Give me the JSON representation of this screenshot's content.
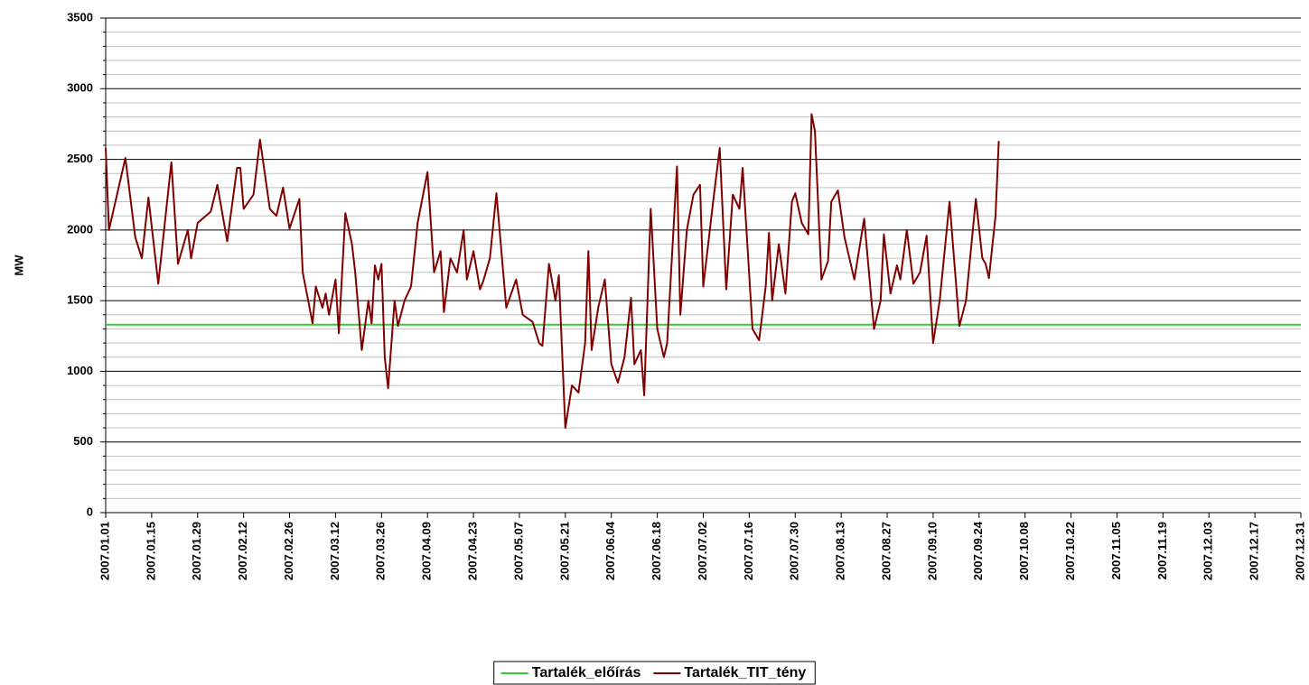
{
  "chart_data": {
    "type": "line",
    "y_label": "MW",
    "xlim": [
      "2007.01.01",
      "2007.12.31"
    ],
    "xticks": [
      "2007.01.01",
      "2007.01.15",
      "2007.01.29",
      "2007.02.12",
      "2007.02.26",
      "2007.03.12",
      "2007.03.26",
      "2007.04.09",
      "2007.04.23",
      "2007.05.07",
      "2007.05.21",
      "2007.06.04",
      "2007.06.18",
      "2007.07.02",
      "2007.07.16",
      "2007.07.30",
      "2007.08.13",
      "2007.08.27",
      "2007.09.10",
      "2007.09.24",
      "2007.10.08",
      "2007.10.22",
      "2007.11.05",
      "2007.11.19",
      "2007.12.03",
      "2007.12.17",
      "2007.12.31"
    ],
    "ylim": [
      0,
      3500
    ],
    "yticks": [
      0,
      500,
      1000,
      1500,
      2000,
      2500,
      3000,
      3500
    ],
    "y_minor_ticks": [
      100,
      200,
      300,
      400,
      600,
      700,
      800,
      900,
      1100,
      1200,
      1300,
      1400,
      1600,
      1700,
      1800,
      1900,
      2100,
      2200,
      2300,
      2400,
      2600,
      2700,
      2800,
      2900,
      3100,
      3200,
      3300,
      3400
    ],
    "grid": true,
    "legend": "bottom",
    "series": [
      {
        "name": "Tartalék_előírás",
        "color": "#33cc33",
        "x": [
          "2007.01.01",
          "2007.12.31"
        ],
        "values": [
          1330,
          1330
        ]
      },
      {
        "name": "Tartalék_TIT_tény",
        "color": "#800000",
        "x": [
          "2007.01.01",
          "2007.01.02",
          "2007.01.07",
          "2007.01.10",
          "2007.01.12",
          "2007.01.14",
          "2007.01.17",
          "2007.01.21",
          "2007.01.23",
          "2007.01.26",
          "2007.01.27",
          "2007.01.29",
          "2007.02.02",
          "2007.02.04",
          "2007.02.07",
          "2007.02.10",
          "2007.02.11",
          "2007.02.12",
          "2007.02.15",
          "2007.02.17",
          "2007.02.20",
          "2007.02.22",
          "2007.02.24",
          "2007.02.26",
          "2007.03.01",
          "2007.03.02",
          "2007.03.05",
          "2007.03.06",
          "2007.03.08",
          "2007.03.09",
          "2007.03.10",
          "2007.03.12",
          "2007.03.13",
          "2007.03.15",
          "2007.03.17",
          "2007.03.18",
          "2007.03.20",
          "2007.03.22",
          "2007.03.23",
          "2007.03.24",
          "2007.03.25",
          "2007.03.26",
          "2007.03.27",
          "2007.03.28",
          "2007.03.30",
          "2007.03.31",
          "2007.04.02",
          "2007.04.04",
          "2007.04.06",
          "2007.04.09",
          "2007.04.11",
          "2007.04.13",
          "2007.04.14",
          "2007.04.16",
          "2007.04.18",
          "2007.04.20",
          "2007.04.21",
          "2007.04.23",
          "2007.04.25",
          "2007.04.26",
          "2007.04.28",
          "2007.04.30",
          "2007.05.03",
          "2007.05.06",
          "2007.05.08",
          "2007.05.11",
          "2007.05.13",
          "2007.05.14",
          "2007.05.16",
          "2007.05.18",
          "2007.05.19",
          "2007.05.21",
          "2007.05.23",
          "2007.05.25",
          "2007.05.27",
          "2007.05.28",
          "2007.05.29",
          "2007.05.31",
          "2007.06.02",
          "2007.06.04",
          "2007.06.06",
          "2007.06.08",
          "2007.06.10",
          "2007.06.11",
          "2007.06.13",
          "2007.06.14",
          "2007.06.16",
          "2007.06.18",
          "2007.06.20",
          "2007.06.21",
          "2007.06.24",
          "2007.06.25",
          "2007.06.27",
          "2007.06.29",
          "2007.07.01",
          "2007.07.02",
          "2007.07.05",
          "2007.07.07",
          "2007.07.09",
          "2007.07.11",
          "2007.07.13",
          "2007.07.14",
          "2007.07.17",
          "2007.07.19",
          "2007.07.21",
          "2007.07.22",
          "2007.07.23",
          "2007.07.25",
          "2007.07.27",
          "2007.07.29",
          "2007.07.30",
          "2007.08.01",
          "2007.08.03",
          "2007.08.04",
          "2007.08.05",
          "2007.08.07",
          "2007.08.09",
          "2007.08.10",
          "2007.08.12",
          "2007.08.14",
          "2007.08.17",
          "2007.08.20",
          "2007.08.23",
          "2007.08.25",
          "2007.08.26",
          "2007.08.28",
          "2007.08.30",
          "2007.08.31",
          "2007.09.02",
          "2007.09.04",
          "2007.09.06",
          "2007.09.08",
          "2007.09.10",
          "2007.09.12",
          "2007.09.15",
          "2007.09.18",
          "2007.09.20",
          "2007.09.23",
          "2007.09.25",
          "2007.09.26",
          "2007.09.27",
          "2007.09.29",
          "2007.09.30"
        ],
        "values": [
          2580,
          2000,
          2510,
          1950,
          1800,
          2230,
          1620,
          2480,
          1760,
          2000,
          1800,
          2050,
          2130,
          2320,
          1920,
          2440,
          2440,
          2150,
          2250,
          2640,
          2150,
          2100,
          2300,
          2010,
          2220,
          1700,
          1340,
          1600,
          1450,
          1550,
          1400,
          1650,
          1270,
          2120,
          1900,
          1700,
          1150,
          1500,
          1340,
          1750,
          1650,
          1760,
          1100,
          880,
          1500,
          1320,
          1500,
          1600,
          2050,
          2410,
          1700,
          1850,
          1420,
          1800,
          1700,
          2000,
          1650,
          1850,
          1580,
          1640,
          1800,
          2260,
          1450,
          1650,
          1400,
          1350,
          1200,
          1180,
          1760,
          1500,
          1680,
          600,
          900,
          850,
          1200,
          1850,
          1150,
          1450,
          1650,
          1050,
          920,
          1100,
          1520,
          1050,
          1150,
          830,
          2150,
          1300,
          1100,
          1200,
          2450,
          1400,
          2000,
          2250,
          2320,
          1600,
          2200,
          2580,
          1580,
          2250,
          2150,
          2440,
          1300,
          1220,
          1600,
          1980,
          1500,
          1900,
          1550,
          2200,
          2260,
          2050,
          1970,
          2820,
          2700,
          1650,
          1780,
          2200,
          2280,
          1950,
          1650,
          2080,
          1300,
          1500,
          1970,
          1550,
          1750,
          1650,
          2000,
          1620,
          1700,
          1960,
          1200,
          1500,
          2200,
          1320,
          1500,
          2220,
          1800,
          1760,
          1660,
          2100,
          2630
        ]
      }
    ]
  }
}
